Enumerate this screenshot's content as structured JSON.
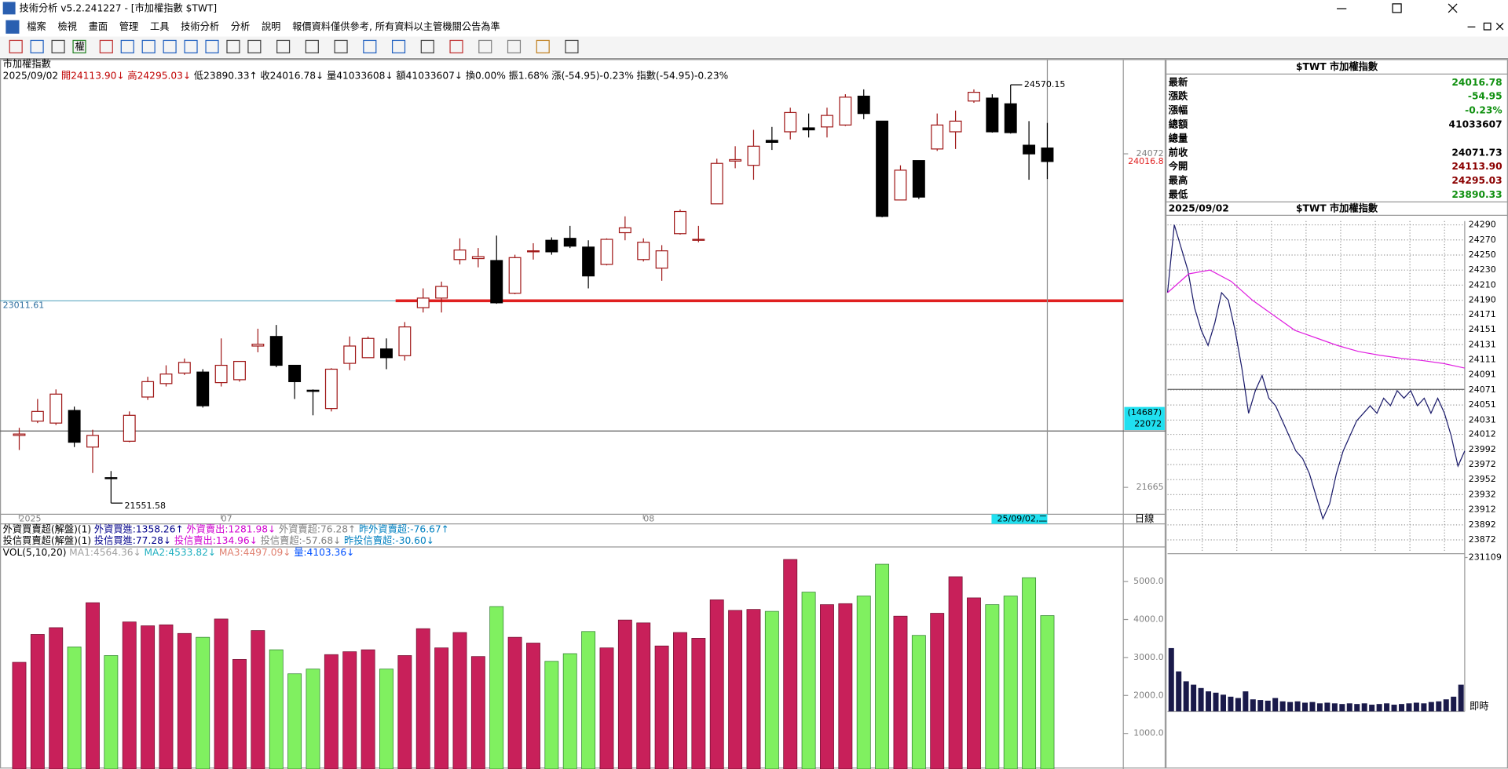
{
  "window": {
    "title": "技術分析 v5.2.241227 - [市加權指數 $TWT]"
  },
  "menu": [
    "檔案",
    "檢視",
    "畫面",
    "管理",
    "工具",
    "技術分析",
    "分析",
    "說明"
  ],
  "notice": "報價資料僅供參考, 所有資料以主管機關公告為準",
  "toolbar_label": "權",
  "info_line": [
    {
      "text": "2025/09/02",
      "color": "#000000"
    },
    {
      "text": "開24113.90↓",
      "color": "#c00000"
    },
    {
      "text": "高24295.03↓",
      "color": "#c00000"
    },
    {
      "text": "低23890.33↑",
      "color": "#000000"
    },
    {
      "text": "收24016.78↓",
      "color": "#000000"
    },
    {
      "text": "量41033608↓",
      "color": "#000000"
    },
    {
      "text": "額41033607↓",
      "color": "#000000"
    },
    {
      "text": "換0.00%",
      "color": "#000000"
    },
    {
      "text": "振1.68%",
      "color": "#000000"
    },
    {
      "text": "漲(-54.95)-0.23%",
      "color": "#000000"
    },
    {
      "text": "指數(-54.95)-0.23%",
      "color": "#000000"
    }
  ],
  "indicators": [
    [
      {
        "text": "外資買賣超(解盤)(1)",
        "color": "#000000"
      },
      {
        "text": "外資買進:1358.26↑",
        "color": "#00008b"
      },
      {
        "text": "外資賣出:1281.98↓",
        "color": "#d000d0"
      },
      {
        "text": "外資賣超:76.28↑",
        "color": "#808080"
      },
      {
        "text": "昨外資賣超:-76.67↑",
        "color": "#0080c0"
      }
    ],
    [
      {
        "text": "投信買賣超(解盤)(1)",
        "color": "#000000"
      },
      {
        "text": "投信買進:77.28↓",
        "color": "#00008b"
      },
      {
        "text": "投信賣出:134.96↓",
        "color": "#d000d0"
      },
      {
        "text": "投信賣超:-57.68↓",
        "color": "#808080"
      },
      {
        "text": "昨投信賣超:-30.60↓",
        "color": "#0080c0"
      }
    ]
  ],
  "volume_header": [
    {
      "text": "VOL(5,10,20)",
      "color": "#000000"
    },
    {
      "text": "MA1:4564.36↓",
      "color": "#a0a0a0"
    },
    {
      "text": "MA2:4533.82↓",
      "color": "#20b0c0"
    },
    {
      "text": "MA3:4497.09↓",
      "color": "#e08070"
    },
    {
      "text": "量:4103.36↓",
      "color": "#0050ff"
    }
  ],
  "period": "日線",
  "quote": {
    "title": "$TWT 市加權指數",
    "rows": [
      {
        "label": "最新",
        "value": "24016.78",
        "color": "#109010"
      },
      {
        "label": "漲跌",
        "value": "-54.95",
        "color": "#109010"
      },
      {
        "label": "漲幅",
        "value": "-0.23%",
        "color": "#109010"
      },
      {
        "label": "總額",
        "value": "41033607",
        "color": "#000000"
      },
      {
        "label": "總量"
      },
      {
        "label": "前收",
        "value": "24071.73",
        "color": "#000000"
      },
      {
        "label": "今開",
        "value": "24113.90",
        "color": "#8b0000"
      },
      {
        "label": "最高",
        "value": "24295.03",
        "color": "#8b0000"
      },
      {
        "label": "最低",
        "value": "23890.33",
        "color": "#109010"
      }
    ]
  },
  "chart_data": [
    {
      "type": "candlestick",
      "title": "市加權指數",
      "categories": [
        "2025",
        null,
        null,
        null,
        null,
        null,
        null,
        null,
        null,
        null,
        null,
        "07",
        null,
        null,
        null,
        null,
        null,
        null,
        null,
        null,
        null,
        null,
        null,
        null,
        null,
        null,
        null,
        null,
        null,
        null,
        null,
        null,
        null,
        null,
        "08",
        null,
        null,
        null,
        null,
        null,
        null,
        null,
        null,
        null,
        null,
        null,
        null,
        null,
        null,
        null,
        null,
        null,
        null,
        null,
        null,
        null,
        null
      ],
      "open": [
        22040,
        22143,
        22129,
        22220,
        21956,
        21735,
        21998,
        22317,
        22414,
        22490,
        22497,
        22421,
        22442,
        22685,
        22754,
        22546,
        22366,
        22234,
        22560,
        22601,
        22664,
        22615,
        22962,
        23031,
        23309,
        23316,
        23302,
        23066,
        23365,
        23448,
        23462,
        23399,
        23274,
        23503,
        23309,
        23247,
        23496,
        23448,
        23711,
        24020,
        23989,
        24169,
        24231,
        24259,
        24266,
        24280,
        24488,
        24308,
        23739,
        24023,
        24107,
        24231,
        24453,
        24474,
        24433,
        24134,
        24113.9
      ],
      "high": [
        22095,
        22303,
        22372,
        22248,
        22081,
        21783,
        22213,
        22463,
        22546,
        22595,
        22518,
        22740,
        22574,
        22810,
        22837,
        22546,
        22372,
        22525,
        22754,
        22754,
        22740,
        22858,
        23101,
        23150,
        23462,
        23392,
        23482,
        23344,
        23427,
        23469,
        23552,
        23448,
        23462,
        23621,
        23462,
        23413,
        23670,
        23552,
        24037,
        24127,
        24245,
        24266,
        24405,
        24363,
        24405,
        24502,
        24537,
        24308,
        23989,
        24023,
        24363,
        24384,
        24537,
        24502,
        24570.15,
        24308,
        24295.03
      ],
      "low": [
        21935,
        22129,
        22115,
        21956,
        21769,
        21551.58,
        21991,
        22296,
        22393,
        22476,
        22241,
        22393,
        22428,
        22640,
        22532,
        22303,
        22185,
        22213,
        22511,
        22601,
        22518,
        22580,
        22927,
        22927,
        23274,
        23253,
        22990,
        23059,
        23309,
        23344,
        23392,
        23101,
        23267,
        23448,
        23295,
        23156,
        23489,
        23434,
        23711,
        23968,
        23885,
        24100,
        24176,
        24190,
        24190,
        24273,
        24322,
        23614,
        23739,
        23746,
        24093,
        24107,
        24440,
        24225,
        24218,
        23885,
        23890.33
      ],
      "close": [
        22050,
        22213,
        22338,
        21991,
        22040,
        21730,
        22185,
        22428,
        22483,
        22567,
        22254,
        22546,
        22574,
        22698,
        22546,
        22428,
        22358,
        22518,
        22685,
        22740,
        22601,
        22823,
        23031,
        23115,
        23378,
        23330,
        22997,
        23323,
        23372,
        23365,
        23406,
        23191,
        23455,
        23538,
        23434,
        23372,
        23656,
        23455,
        24003,
        24030,
        24127,
        24155,
        24370,
        24245,
        24349,
        24481,
        24363,
        23621,
        23954,
        23760,
        24280,
        24308,
        24516,
        24231,
        24225,
        24071.73,
        24016.78
      ],
      "up_color": "#a01818",
      "down_color": "#000000",
      "ylim": [
        21471,
        24752
      ],
      "yticks": [
        24072,
        21665
      ],
      "hline": 23011.61,
      "trend_color": "#e02020",
      "crosshair": {
        "value": 22072,
        "volume_label": "(14687)",
        "date_label": "25/09/02,二"
      },
      "last_price_label": "24016.8"
    },
    {
      "type": "bar",
      "values": [
        2873,
        3608,
        3785,
        3278,
        4443,
        3051,
        3937,
        3835,
        3861,
        3633,
        3532,
        4013,
        2949,
        3709,
        3203,
        2570,
        2696,
        3076,
        3152,
        3203,
        2696,
        3051,
        3759,
        3253,
        3658,
        3025,
        4342,
        3532,
        3380,
        2899,
        3101,
        3684,
        3253,
        3987,
        3911,
        3304,
        3658,
        3506,
        4519,
        4241,
        4266,
        4215,
        5582,
        4722,
        4392,
        4418,
        4620,
        5456,
        4089,
        3582,
        4165,
        5127,
        4570,
        4392,
        4620,
        5101,
        4103.36
      ],
      "up_color": "#c8205a",
      "down_color": "#80f060",
      "ylim": [
        63,
        5886
      ],
      "yticks": [
        {
          "value": 5000,
          "label": "5000.0"
        },
        {
          "value": 4000,
          "label": "4000.0"
        },
        {
          "value": 3000,
          "label": "3000.0"
        },
        {
          "value": 2000,
          "label": "2000.0"
        },
        {
          "value": 1000,
          "label": "1000.0"
        }
      ]
    },
    {
      "type": "line",
      "title": "$TWT 市加權指數",
      "date": "2025/09/02",
      "series": [
        {
          "color": "#1a1a6a",
          "values": [
            24200,
            24290,
            24260,
            24230,
            24180,
            24150,
            24130,
            24160,
            24200,
            24190,
            24150,
            24100,
            24040,
            24070,
            24090,
            24060,
            24050,
            24030,
            24010,
            23990,
            23980,
            23960,
            23930,
            23900,
            23920,
            23960,
            23990,
            24010,
            24030,
            24040,
            24050,
            24040,
            24060,
            24050,
            24070,
            24060,
            24070,
            24050,
            24060,
            24040,
            24060,
            24040,
            24010,
            23970,
            23990
          ]
        },
        {
          "color": "#e020e0",
          "values": [
            24200,
            24225,
            24230,
            24215,
            24190,
            24170,
            24150,
            24140,
            24130,
            24122,
            24117,
            24113,
            24110,
            24106,
            24100
          ]
        }
      ],
      "reference": 24071.73,
      "ylim": [
        23855,
        24295
      ],
      "yticks": [
        24290,
        24270,
        24250,
        24230,
        24210,
        24190,
        24171,
        24151,
        24131,
        24111,
        24091,
        24071,
        24051,
        24031,
        24012,
        23992,
        23972,
        23952,
        23932,
        23912,
        23892,
        23872
      ]
    },
    {
      "type": "bar",
      "x_label": "即時",
      "color": "#1a1a4a",
      "values": [
        95000,
        60000,
        45000,
        40000,
        35000,
        30000,
        28000,
        25000,
        22000,
        20000,
        30000,
        18000,
        17000,
        16000,
        20000,
        15000,
        14000,
        15000,
        13000,
        14000,
        12000,
        13000,
        12000,
        11000,
        12000,
        11000,
        12000,
        10000,
        11000,
        12000,
        10000,
        11000,
        12000,
        13000,
        12000,
        14000,
        15000,
        18000,
        22000,
        40000
      ],
      "ylim": [
        0,
        231109
      ],
      "yticks": [
        231109
      ]
    }
  ]
}
